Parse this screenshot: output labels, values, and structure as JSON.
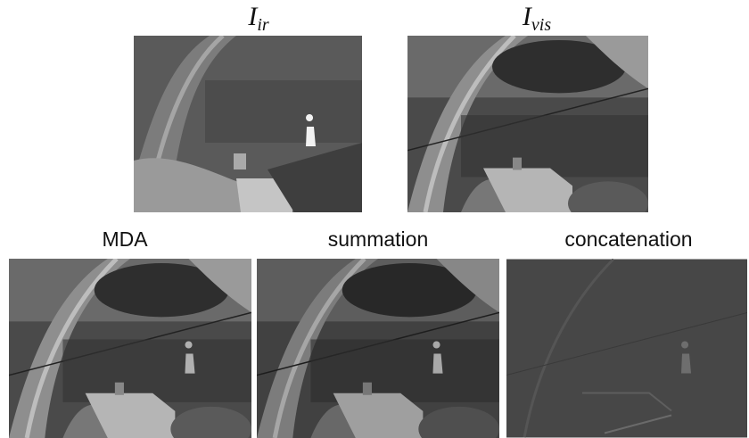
{
  "figure": {
    "top_labels": [
      {
        "main": "I",
        "sub": "ir"
      },
      {
        "main": "I",
        "sub": "vis"
      }
    ],
    "bottom_labels": [
      "MDA",
      "summation",
      "concatenation"
    ]
  }
}
